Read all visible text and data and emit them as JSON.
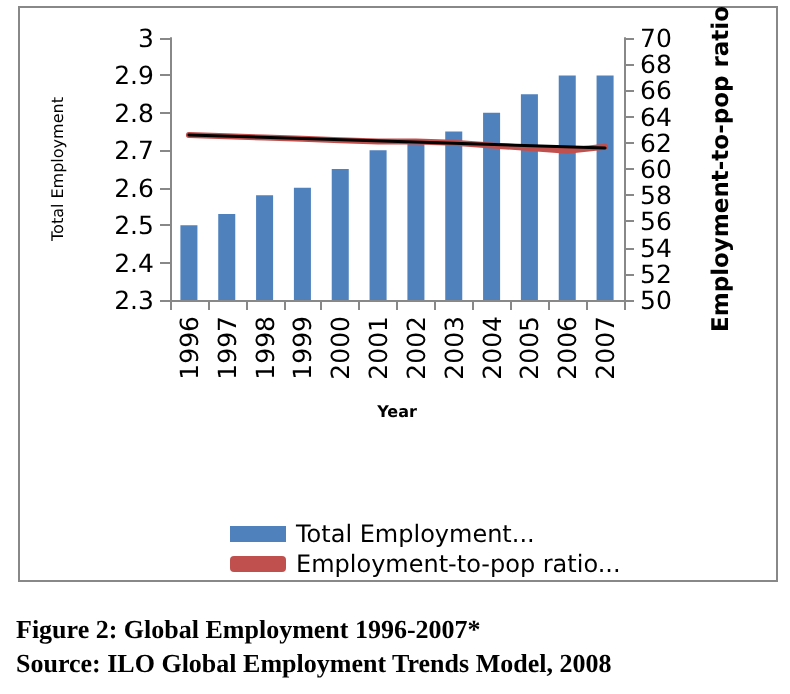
{
  "chart_data": {
    "type": "bar",
    "title": "Figure 2: Global Employment 1996-2007*",
    "annotations": [
      "Source: ILO Global Employment Trends Model, 2008"
    ],
    "xlabel": "Year",
    "ylabel": "Total Employment",
    "y2label": "Employment-to-pop ratio",
    "categories": [
      "1996",
      "1997",
      "1998",
      "1999",
      "2000",
      "2001",
      "2002",
      "2003",
      "2004",
      "2005",
      "2006",
      "2007"
    ],
    "series": [
      {
        "name": "Total Employment...",
        "color": "#4f81bd",
        "values": [
          2.5,
          2.53,
          2.58,
          2.6,
          2.65,
          2.7,
          2.72,
          2.75,
          2.8,
          2.85,
          2.9,
          2.9
        ]
      },
      {
        "name": "Employment-to-pop ratio...",
        "type": "line",
        "axis": "y2",
        "color": "#c0504d",
        "values": [
          62.6,
          62.5,
          62.4,
          62.3,
          62.2,
          62.1,
          62.1,
          62.0,
          61.8,
          61.6,
          61.4,
          61.7
        ]
      },
      {
        "type": "line",
        "axis": "y2",
        "color": "#000000",
        "values": [
          62.6,
          null,
          null,
          null,
          null,
          null,
          null,
          null,
          null,
          null,
          null,
          61.6
        ]
      }
    ],
    "ylim": [
      2.3,
      3
    ],
    "yticks": [
      2.3,
      2.4,
      2.5,
      2.6,
      2.7,
      2.8,
      2.9,
      3
    ],
    "y2lim": [
      50,
      70
    ],
    "y2ticks": [
      50,
      52,
      54,
      56,
      58,
      60,
      62,
      64,
      66,
      68,
      70
    ],
    "grid": false,
    "legend": "bottom",
    "marker": "none",
    "line_style": "solid"
  }
}
